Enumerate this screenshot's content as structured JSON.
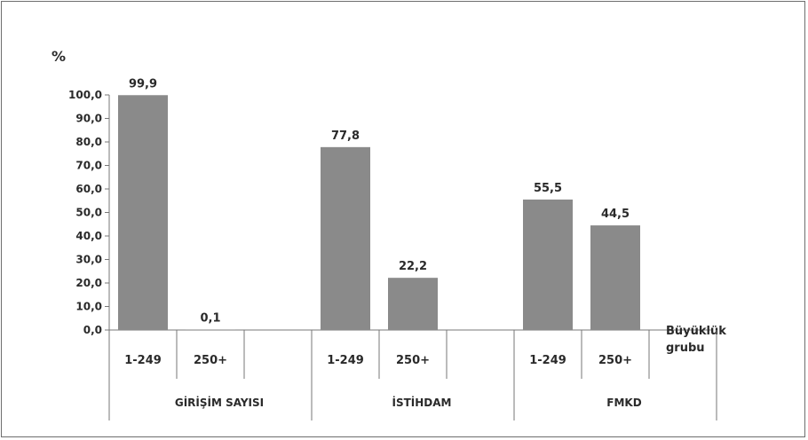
{
  "chart_data": {
    "type": "bar",
    "ylabel": "%",
    "xlabel": "Büyüklük\ngrubu",
    "ylim": [
      0,
      100
    ],
    "yticks": [
      "0,0",
      "10,0",
      "20,0",
      "30,0",
      "40,0",
      "50,0",
      "60,0",
      "70,0",
      "80,0",
      "90,0",
      "100,0"
    ],
    "bar_color": "#8a8a8a",
    "groups": [
      {
        "name": "GİRİŞİM SAYISI",
        "bars": [
          {
            "category": "1-249",
            "value": 99.9,
            "label": "99,9"
          },
          {
            "category": "250+",
            "value": 0.1,
            "label": "0,1"
          }
        ]
      },
      {
        "name": "İSTİHDAM",
        "bars": [
          {
            "category": "1-249",
            "value": 77.8,
            "label": "77,8"
          },
          {
            "category": "250+",
            "value": 22.2,
            "label": "22,2"
          }
        ]
      },
      {
        "name": "FMKD",
        "bars": [
          {
            "category": "1-249",
            "value": 55.5,
            "label": "55,5"
          },
          {
            "category": "250+",
            "value": 44.5,
            "label": "44,5"
          }
        ]
      }
    ]
  }
}
